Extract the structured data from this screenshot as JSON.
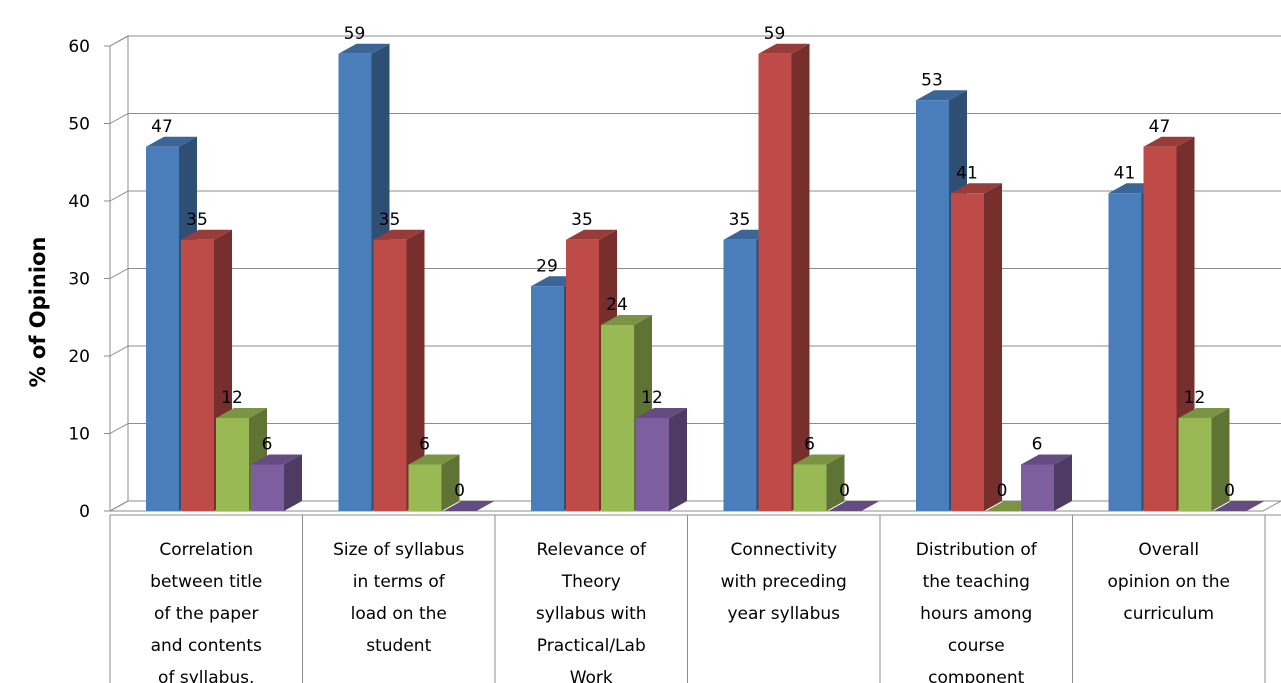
{
  "chart_data": {
    "type": "bar",
    "ylabel": "% of Opinion",
    "ylim": [
      0,
      60
    ],
    "yticks": [
      "0",
      "10",
      "20",
      "30",
      "40",
      "50",
      "60"
    ],
    "grid": true,
    "categories": [
      [
        "Correlation",
        "between title",
        "of the paper",
        "and contents",
        "of syllabus."
      ],
      [
        "Size of syllabus",
        "in terms of",
        "load on  the",
        "student"
      ],
      [
        "Relevance of",
        "Theory",
        "syllabus with",
        "Practical/Lab",
        "Work"
      ],
      [
        "Connectivity",
        "with preceding",
        "year syllabus"
      ],
      [
        "Distribution of",
        "the teaching",
        "hours among",
        "course",
        "component"
      ],
      [
        "Overall",
        "opinion on the",
        "curriculum"
      ]
    ],
    "series": [
      {
        "values": [
          47,
          59,
          29,
          35,
          53,
          41
        ],
        "color": "#4a7ebb"
      },
      {
        "values": [
          35,
          35,
          35,
          59,
          41,
          47
        ],
        "color": "#be4b48"
      },
      {
        "values": [
          12,
          6,
          24,
          6,
          0,
          12
        ],
        "color": "#98b954"
      },
      {
        "values": [
          6,
          0,
          12,
          0,
          6,
          0
        ],
        "color": "#7d5fa0"
      }
    ]
  }
}
